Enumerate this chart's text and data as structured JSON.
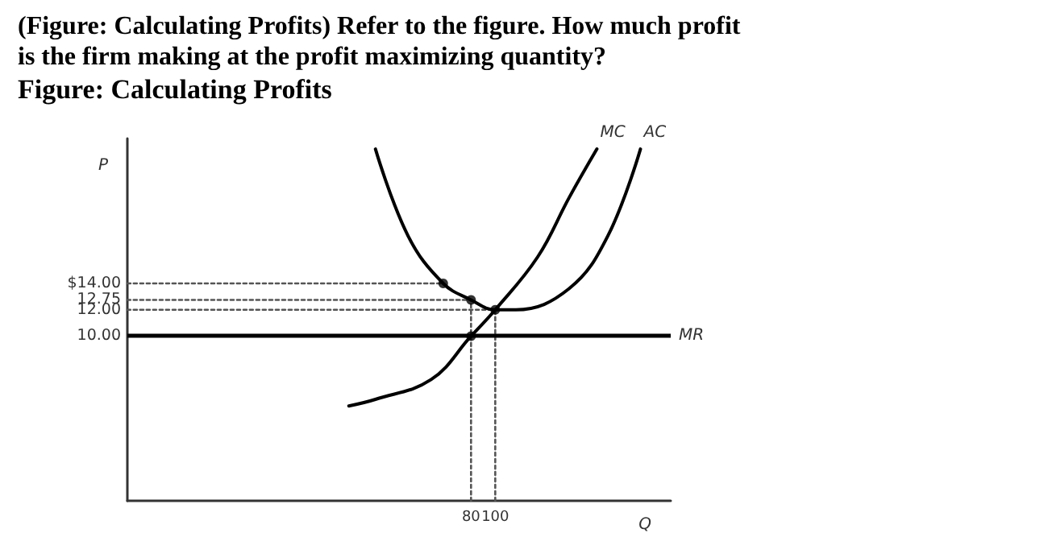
{
  "chart_data": {
    "type": "line",
    "title": "(Figure: Calculating Profits) Refer to the figure. How much profit is the firm making at the profit maximizing quantity?",
    "subtitle": "Figure: Calculating Profits",
    "xlabel": "Q",
    "ylabel": "P",
    "xlim": [
      -204,
      245
    ],
    "ylim": [
      -2.5,
      25
    ],
    "xticks": [
      80,
      100
    ],
    "yticks": [
      {
        "value": 10,
        "label": "10.00"
      },
      {
        "value": 12,
        "label": "12.00"
      },
      {
        "value": 12.75,
        "label": "12.75"
      },
      {
        "value": 14,
        "label": "$14.00"
      }
    ],
    "grid": false,
    "legend": false,
    "series": [
      {
        "name": "MC",
        "color": "#000000",
        "x": [
          -21,
          1,
          47,
          80,
          100,
          135,
          161,
          184
        ],
        "values": [
          4.7,
          5.2,
          6.7,
          10,
          12,
          16,
          20.5,
          24.2
        ]
      },
      {
        "name": "AC",
        "color": "#000000",
        "x": [
          1,
          28,
          57,
          80,
          100,
          117,
          161,
          193,
          220
        ],
        "values": [
          24.2,
          17.6,
          14,
          12.75,
          12,
          12,
          13.6,
          17.6,
          24.2
        ]
      },
      {
        "type": "scatter",
        "marker": "circle",
        "color": "#000000",
        "x": [
          57,
          80,
          80,
          100
        ],
        "values": [
          14,
          12.75,
          10,
          12
        ]
      },
      {
        "color": "#555555",
        "line_style": "dotted",
        "x": [
          -204,
          57
        ],
        "values": [
          14,
          14
        ]
      },
      {
        "color": "#555555",
        "line_style": "dotted",
        "x": [
          -204,
          80
        ],
        "values": [
          12.75,
          12.75
        ]
      },
      {
        "color": "#555555",
        "line_style": "dotted",
        "x": [
          -204,
          100
        ],
        "values": [
          12,
          12
        ]
      },
      {
        "color": "#555555",
        "line_style": "dotted",
        "x": [
          80,
          80
        ],
        "values": [
          -2.5,
          12.75
        ]
      },
      {
        "color": "#555555",
        "line_style": "dotted",
        "x": [
          100,
          100
        ],
        "values": [
          -2.5,
          12
        ]
      }
    ],
    "ref_lines": [
      {
        "axis": "y",
        "value": 10,
        "label": "MR",
        "color": "#000000"
      }
    ]
  }
}
